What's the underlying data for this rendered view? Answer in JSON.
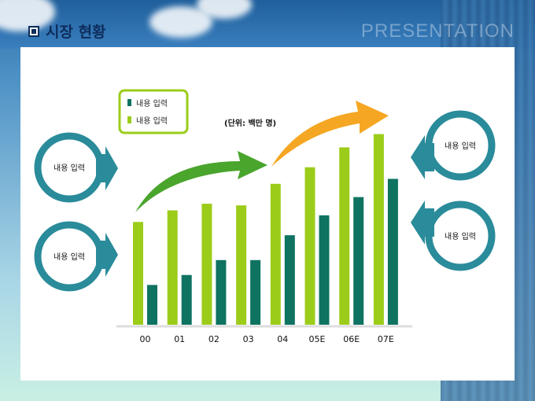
{
  "header": {
    "title": "시장 현황",
    "brand": "PRESENTATION"
  },
  "legend": {
    "items": [
      "내용 입력",
      "내용 입력"
    ]
  },
  "unit_label": "(단위: 백만 명)",
  "callouts": {
    "left_top": "내용 입력",
    "left_bottom": "내용 입력",
    "right_top": "내용 입력",
    "right_bottom": "내용 입력"
  },
  "colors": {
    "series1": "#9ccc1a",
    "series2": "#0e7361",
    "ring": "#2a8b9a",
    "arrow_green": "#4aa52c",
    "arrow_orange": "#f5a623"
  },
  "chart_data": {
    "type": "bar",
    "categories": [
      "00",
      "01",
      "02",
      "03",
      "04",
      "05E",
      "06E",
      "07E"
    ],
    "series": [
      {
        "name": "내용 입력",
        "values": [
          62,
          69,
          73,
          72,
          85,
          95,
          107,
          115
        ]
      },
      {
        "name": "내용 입력",
        "values": [
          24,
          30,
          39,
          39,
          54,
          66,
          77,
          88
        ]
      }
    ],
    "ylim": [
      0,
      120
    ],
    "title": "",
    "xlabel": "",
    "ylabel": "",
    "grid": false,
    "legend_position": "top-left"
  }
}
